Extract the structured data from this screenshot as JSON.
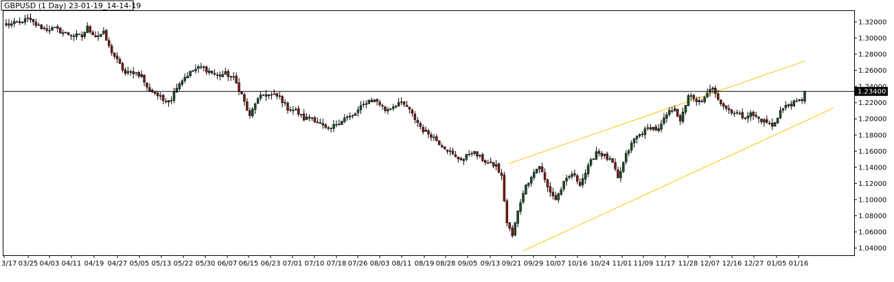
{
  "window": {
    "title": "GBPUSD (1 Day) 23-01-19_14-14-19"
  },
  "colors": {
    "background": "#ffffff",
    "frame": "#000000",
    "bull_body": "#1d4d28",
    "bear_body": "#7a1c16",
    "wick": "#000000",
    "channel": "#ffc000",
    "price_line": "#000000",
    "price_tag_bg": "#000000",
    "price_tag_text": "#ffffff"
  },
  "chart_data": {
    "type": "candlestick",
    "symbol": "GBPUSD",
    "timeframe": "1 Day",
    "ylim": [
      1.0335,
      1.3365
    ],
    "y_ticks": [
      "1.32000",
      "1.30000",
      "1.28000",
      "1.26000",
      "1.24000",
      "1.22000",
      "1.20000",
      "1.18000",
      "1.16000",
      "1.14000",
      "1.12000",
      "1.10000",
      "1.08000",
      "1.06000",
      "1.04000"
    ],
    "x_ticks": [
      "3/17",
      "03/25",
      "04/03",
      "04/11",
      "04/19",
      "04/27",
      "05/05",
      "05/13",
      "05/22",
      "05/30",
      "06/07",
      "06/15",
      "06/23",
      "07/01",
      "07/10",
      "07/18",
      "07/26",
      "08/03",
      "08/11",
      "08/19",
      "08/28",
      "09/05",
      "09/13",
      "09/21",
      "09/29",
      "10/07",
      "10/16",
      "10/24",
      "11/01",
      "11/09",
      "11/17",
      "11/28",
      "12/07",
      "12/16",
      "12/27",
      "01/05",
      "01/16"
    ],
    "horizontal_line": {
      "value": 1.234,
      "label": "1.23400"
    },
    "channel_lines": [
      {
        "name": "upper",
        "points": [
          [
            0,
            1.1445
          ],
          [
            0,
            1.2715
          ]
        ]
      },
      {
        "name": "lower",
        "points": [
          [
            0,
            1.0365
          ],
          [
            0,
            1.2135
          ]
        ]
      }
    ],
    "path_points": [
      [
        1.317,
        2
      ],
      [
        1.3195,
        5
      ],
      [
        1.323,
        8
      ],
      [
        1.3145,
        12
      ],
      [
        1.311,
        15
      ],
      [
        1.3115,
        18
      ],
      [
        1.307,
        21
      ],
      [
        1.304,
        24
      ],
      [
        1.302,
        28
      ],
      [
        1.313,
        30
      ],
      [
        1.3025,
        33
      ],
      [
        1.306,
        36
      ],
      [
        1.289,
        38
      ],
      [
        1.272,
        41
      ],
      [
        1.256,
        44
      ],
      [
        1.258,
        47
      ],
      [
        1.254,
        50
      ],
      [
        1.238,
        52
      ],
      [
        1.232,
        55
      ],
      [
        1.223,
        58
      ],
      [
        1.225,
        61
      ],
      [
        1.241,
        63
      ],
      [
        1.252,
        66
      ],
      [
        1.26,
        69
      ],
      [
        1.264,
        72
      ],
      [
        1.259,
        75
      ],
      [
        1.253,
        78
      ],
      [
        1.256,
        81
      ],
      [
        1.25,
        84
      ],
      [
        1.23,
        87
      ],
      [
        1.202,
        90
      ],
      [
        1.22,
        92
      ],
      [
        1.23,
        95
      ],
      [
        1.229,
        98
      ],
      [
        1.227,
        101
      ],
      [
        1.213,
        104
      ],
      [
        1.21,
        107
      ],
      [
        1.2,
        110
      ],
      [
        1.202,
        113
      ],
      [
        1.193,
        116
      ],
      [
        1.185,
        119
      ],
      [
        1.194,
        122
      ],
      [
        1.201,
        125
      ],
      [
        1.203,
        128
      ],
      [
        1.214,
        131
      ],
      [
        1.223,
        134
      ],
      [
        1.222,
        137
      ],
      [
        1.211,
        140
      ],
      [
        1.214,
        142
      ],
      [
        1.22,
        145
      ],
      [
        1.215,
        148
      ],
      [
        1.2,
        151
      ],
      [
        1.186,
        154
      ],
      [
        1.18,
        157
      ],
      [
        1.17,
        160
      ],
      [
        1.162,
        163
      ],
      [
        1.152,
        166
      ],
      [
        1.15,
        169
      ],
      [
        1.16,
        172
      ],
      [
        1.152,
        175
      ],
      [
        1.145,
        178
      ],
      [
        1.142,
        181
      ],
      [
        1.128,
        183
      ],
      [
        1.071,
        185
      ],
      [
        1.055,
        187
      ],
      [
        1.085,
        189
      ],
      [
        1.11,
        191
      ],
      [
        1.13,
        194
      ],
      [
        1.142,
        197
      ],
      [
        1.115,
        200
      ],
      [
        1.1,
        203
      ],
      [
        1.12,
        206
      ],
      [
        1.132,
        209
      ],
      [
        1.12,
        212
      ],
      [
        1.14,
        215
      ],
      [
        1.16,
        218
      ],
      [
        1.154,
        221
      ],
      [
        1.145,
        224
      ],
      [
        1.125,
        226
      ],
      [
        1.155,
        229
      ],
      [
        1.175,
        232
      ],
      [
        1.183,
        235
      ],
      [
        1.19,
        238
      ],
      [
        1.186,
        241
      ],
      [
        1.205,
        244
      ],
      [
        1.215,
        247
      ],
      [
        1.195,
        249
      ],
      [
        1.23,
        252
      ],
      [
        1.22,
        255
      ],
      [
        1.225,
        258
      ],
      [
        1.24,
        261
      ],
      [
        1.22,
        264
      ],
      [
        1.213,
        266
      ],
      [
        1.208,
        269
      ],
      [
        1.203,
        272
      ],
      [
        1.206,
        275
      ],
      [
        1.2,
        278
      ],
      [
        1.196,
        281
      ],
      [
        1.19,
        283
      ],
      [
        1.21,
        286
      ],
      [
        1.218,
        289
      ],
      [
        1.22,
        292
      ],
      [
        1.226,
        295
      ],
      [
        1.235,
        297
      ]
    ]
  }
}
